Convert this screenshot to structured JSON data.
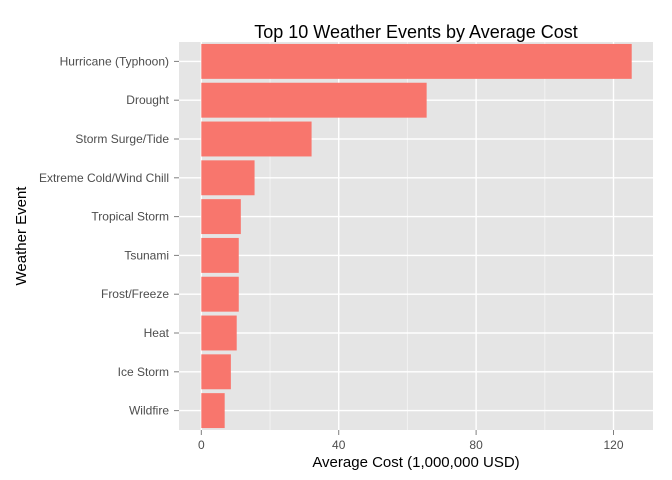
{
  "chart_data": {
    "type": "bar",
    "orientation": "horizontal",
    "title": "Top 10 Weather Events by Average Cost",
    "xlabel": "Average Cost (1,000,000 USD)",
    "ylabel": "Weather Event",
    "categories": [
      "Hurricane (Typhoon)",
      "Drought",
      "Storm Surge/Tide",
      "Extreme Cold/Wind Chill",
      "Tropical Storm",
      "Tsunami",
      "Frost/Freeze",
      "Heat",
      "Ice Storm",
      "Wildfire"
    ],
    "values": [
      125.3,
      65.6,
      32.1,
      15.5,
      11.5,
      10.9,
      10.9,
      10.3,
      8.6,
      6.8
    ],
    "xlim": [
      -6.5,
      131.5
    ],
    "xticks": [
      0,
      40,
      80,
      120
    ],
    "grid": true,
    "legend": "none",
    "colors": {
      "bar": "#f8766d",
      "panel": "#e5e5e5",
      "grid_major": "#ffffff",
      "grid_minor": "#f2f2f2"
    }
  }
}
